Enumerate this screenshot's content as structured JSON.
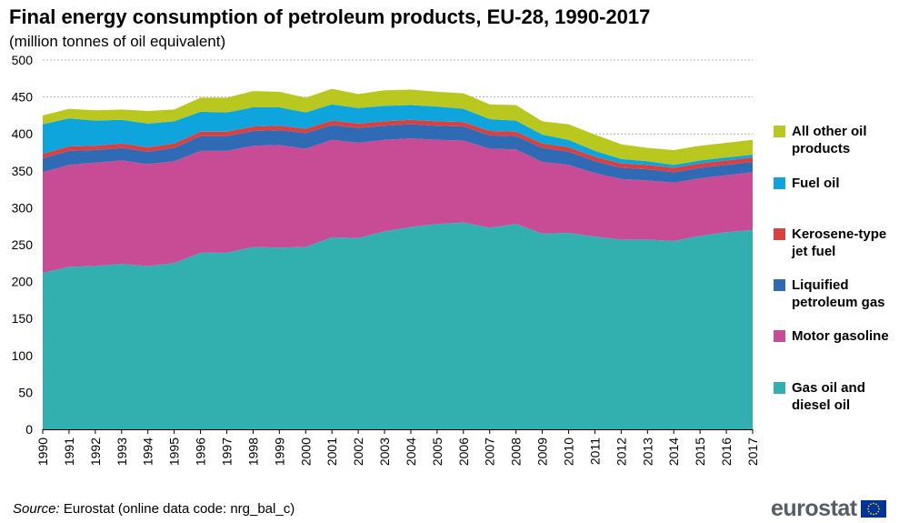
{
  "title": "Final energy consumption of petroleum products, EU-28, 1990-2017",
  "subtitle": "(million  tonnes of oil equivalent)",
  "source": {
    "label": "Source:",
    "text": " Eurostat (online data code: nrg_bal_c)"
  },
  "logo_text": "eurostat",
  "colors": {
    "gas_oil": "#32b0b0",
    "motor_gasoline": "#c84b96",
    "lpg": "#2f6ab4",
    "kerosene": "#d94040",
    "fuel_oil": "#0ea5dc",
    "other": "#b8c81e",
    "grid": "#b0b0b0",
    "flag_blue": "#003399",
    "flag_star": "#ffcc00"
  },
  "chart_data": {
    "type": "area",
    "stacked": true,
    "x": [
      1990,
      1991,
      1992,
      1993,
      1994,
      1995,
      1996,
      1997,
      1998,
      1999,
      2000,
      2001,
      2002,
      2003,
      2004,
      2005,
      2006,
      2007,
      2008,
      2009,
      2010,
      2011,
      2012,
      2013,
      2014,
      2015,
      2016,
      2017
    ],
    "ylim": [
      0,
      500
    ],
    "yticks": [
      0,
      50,
      100,
      150,
      200,
      250,
      300,
      350,
      400,
      450,
      500
    ],
    "grid": true,
    "legend_position": "right",
    "series": [
      {
        "name": "Gas oil and diesel oil",
        "color_key": "gas_oil",
        "values": [
          212,
          220,
          221,
          224,
          221,
          225,
          239,
          239,
          247,
          246,
          247,
          260,
          259,
          268,
          274,
          278,
          280,
          273,
          278,
          265,
          266,
          261,
          257,
          257,
          255,
          262,
          267,
          270
        ]
      },
      {
        "name": "Motor gasoline",
        "color_key": "motor_gasoline",
        "values": [
          136,
          138,
          140,
          140,
          138,
          138,
          138,
          138,
          137,
          139,
          133,
          132,
          129,
          124,
          120,
          114,
          111,
          107,
          101,
          97,
          92,
          86,
          82,
          80,
          79,
          78,
          77,
          78
        ]
      },
      {
        "name": "Liquified petroleum gas",
        "color_key": "lpg",
        "values": [
          19,
          19,
          17,
          17,
          17,
          18,
          20,
          20,
          20,
          20,
          21,
          20,
          20,
          19,
          19,
          19,
          19,
          18,
          18,
          19,
          18,
          16,
          15,
          15,
          14,
          14,
          14,
          14
        ]
      },
      {
        "name": "Kerosene-type jet fuel",
        "color_key": "kerosene",
        "values": [
          6,
          6,
          6,
          6,
          6,
          6,
          6,
          6,
          6,
          6,
          6,
          6,
          6,
          6,
          6,
          6,
          6,
          6,
          6,
          6,
          6,
          6,
          6,
          6,
          6,
          6,
          6,
          6
        ]
      },
      {
        "name": "Fuel oil",
        "color_key": "fuel_oil",
        "values": [
          40,
          38,
          34,
          32,
          32,
          30,
          27,
          26,
          26,
          25,
          22,
          22,
          21,
          21,
          20,
          20,
          18,
          16,
          15,
          12,
          10,
          8,
          6,
          5,
          4,
          4,
          4,
          4
        ]
      },
      {
        "name": "All other oil products",
        "color_key": "other",
        "values": [
          12,
          13,
          14,
          14,
          17,
          16,
          19,
          20,
          22,
          21,
          20,
          21,
          19,
          21,
          21,
          20,
          21,
          20,
          21,
          18,
          21,
          22,
          20,
          18,
          20,
          20,
          20,
          20
        ]
      }
    ],
    "legend_order": [
      5,
      4,
      3,
      2,
      1,
      0
    ]
  }
}
